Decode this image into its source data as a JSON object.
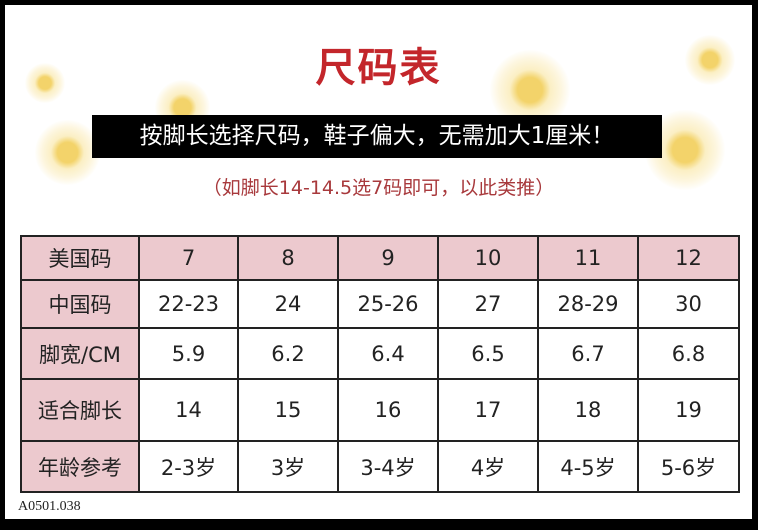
{
  "title": "尺码表",
  "banner": "按脚长选择尺码，鞋子偏大，无需加大1厘米！",
  "subtitle": "（如脚长14-14.5选7码即可，以此类推）",
  "table": {
    "rows": [
      {
        "label": "美国码",
        "values": [
          "7",
          "8",
          "9",
          "10",
          "11",
          "12"
        ]
      },
      {
        "label": "中国码",
        "values": [
          "22-23",
          "24",
          "25-26",
          "27",
          "28-29",
          "30"
        ]
      },
      {
        "label": "脚宽/CM",
        "values": [
          "5.9",
          "6.2",
          "6.4",
          "6.5",
          "6.7",
          "6.8"
        ]
      },
      {
        "label": "适合脚长",
        "values": [
          "14",
          "15",
          "16",
          "17",
          "18",
          "19"
        ]
      },
      {
        "label": "年龄参考",
        "values": [
          "2-3岁",
          "3岁",
          "3-4岁",
          "4岁",
          "4-5岁",
          "5-6岁"
        ]
      }
    ]
  },
  "product_code": "A0501.038",
  "colors": {
    "title": "#c3262b",
    "header_fill": "#ecc9ce",
    "subtitle": "#a8393c"
  }
}
